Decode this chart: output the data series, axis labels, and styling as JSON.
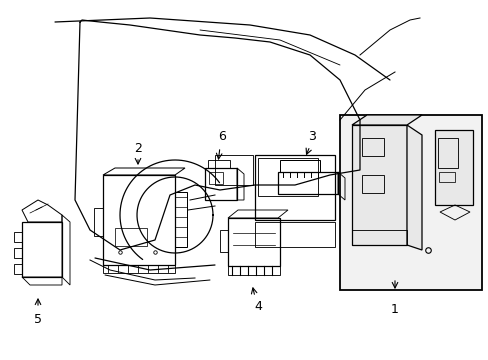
{
  "bg_color": "#ffffff",
  "line_color": "#000000",
  "gray_fill": "#e8e8e8",
  "light_gray": "#f2f2f2",
  "figsize": [
    4.89,
    3.6
  ],
  "dpi": 100,
  "xlim": [
    0,
    489
  ],
  "ylim": [
    0,
    360
  ]
}
